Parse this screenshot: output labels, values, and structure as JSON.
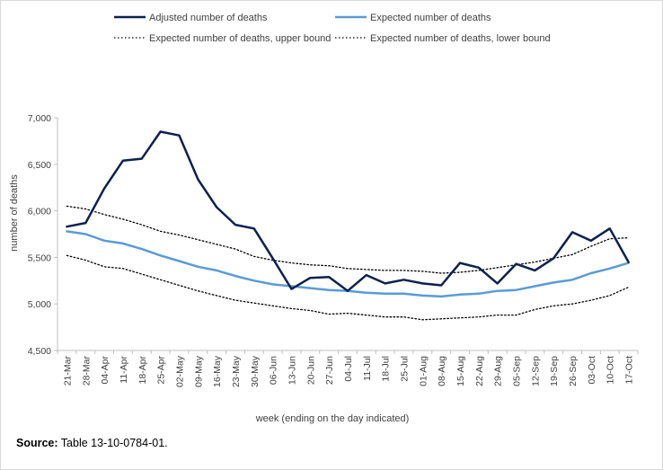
{
  "chart_data": {
    "type": "line",
    "xlabel": "week (ending on the day indicated)",
    "ylabel": "number of deaths",
    "ylim": [
      4500,
      7000
    ],
    "yticks": [
      4500,
      5000,
      5500,
      6000,
      6500,
      7000
    ],
    "ytick_labels": [
      "4,500",
      "5,000",
      "5,500",
      "6,000",
      "6,500",
      "7,000"
    ],
    "grid": false,
    "legend_position": "top",
    "categories": [
      "21-Mar",
      "28-Mar",
      "04-Apr",
      "11-Apr",
      "18-Apr",
      "25-Apr",
      "02-May",
      "09-May",
      "16-May",
      "23-May",
      "30-May",
      "06-Jun",
      "13-Jun",
      "20-Jun",
      "27-Jun",
      "04-Jul",
      "11-Jul",
      "18-Jul",
      "25-Jul",
      "01-Aug",
      "08-Aug",
      "15-Aug",
      "22-Aug",
      "29-Aug",
      "05-Sep",
      "12-Sep",
      "19-Sep",
      "26-Sep",
      "03-Oct",
      "10-Oct",
      "17-Oct"
    ],
    "series": [
      {
        "name": "Adjusted number of deaths",
        "color": "#0d2150",
        "style": "solid",
        "values": [
          5830,
          5870,
          6240,
          6540,
          6560,
          6850,
          6810,
          6340,
          6040,
          5850,
          5810,
          5490,
          5160,
          5280,
          5290,
          5140,
          5310,
          5220,
          5260,
          5220,
          5200,
          5440,
          5390,
          5220,
          5430,
          5360,
          5490,
          5770,
          5680,
          5810,
          5450
        ]
      },
      {
        "name": "Expected number of deaths",
        "color": "#5b9bd5",
        "style": "solid",
        "values": [
          5780,
          5750,
          5680,
          5650,
          5590,
          5520,
          5460,
          5400,
          5360,
          5300,
          5250,
          5210,
          5190,
          5170,
          5150,
          5140,
          5120,
          5110,
          5110,
          5090,
          5080,
          5100,
          5110,
          5140,
          5150,
          5190,
          5230,
          5260,
          5330,
          5380,
          5440
        ]
      },
      {
        "name": "Expected number of deaths, upper bound",
        "color": "#000000",
        "style": "dotted",
        "values": [
          6050,
          6020,
          5960,
          5910,
          5850,
          5780,
          5740,
          5690,
          5640,
          5590,
          5510,
          5470,
          5440,
          5420,
          5410,
          5380,
          5370,
          5360,
          5360,
          5350,
          5330,
          5340,
          5360,
          5390,
          5420,
          5450,
          5490,
          5530,
          5620,
          5700,
          5710
        ]
      },
      {
        "name": "Expected number of deaths, lower bound",
        "color": "#000000",
        "style": "dotted",
        "values": [
          5520,
          5470,
          5400,
          5380,
          5320,
          5260,
          5200,
          5140,
          5090,
          5040,
          5010,
          4980,
          4950,
          4930,
          4890,
          4900,
          4880,
          4860,
          4860,
          4830,
          4840,
          4850,
          4860,
          4880,
          4880,
          4940,
          4980,
          5000,
          5040,
          5090,
          5180
        ]
      }
    ]
  },
  "footer": {
    "source_label": "Source:",
    "source_text": " Table 13-10-0784-01."
  }
}
